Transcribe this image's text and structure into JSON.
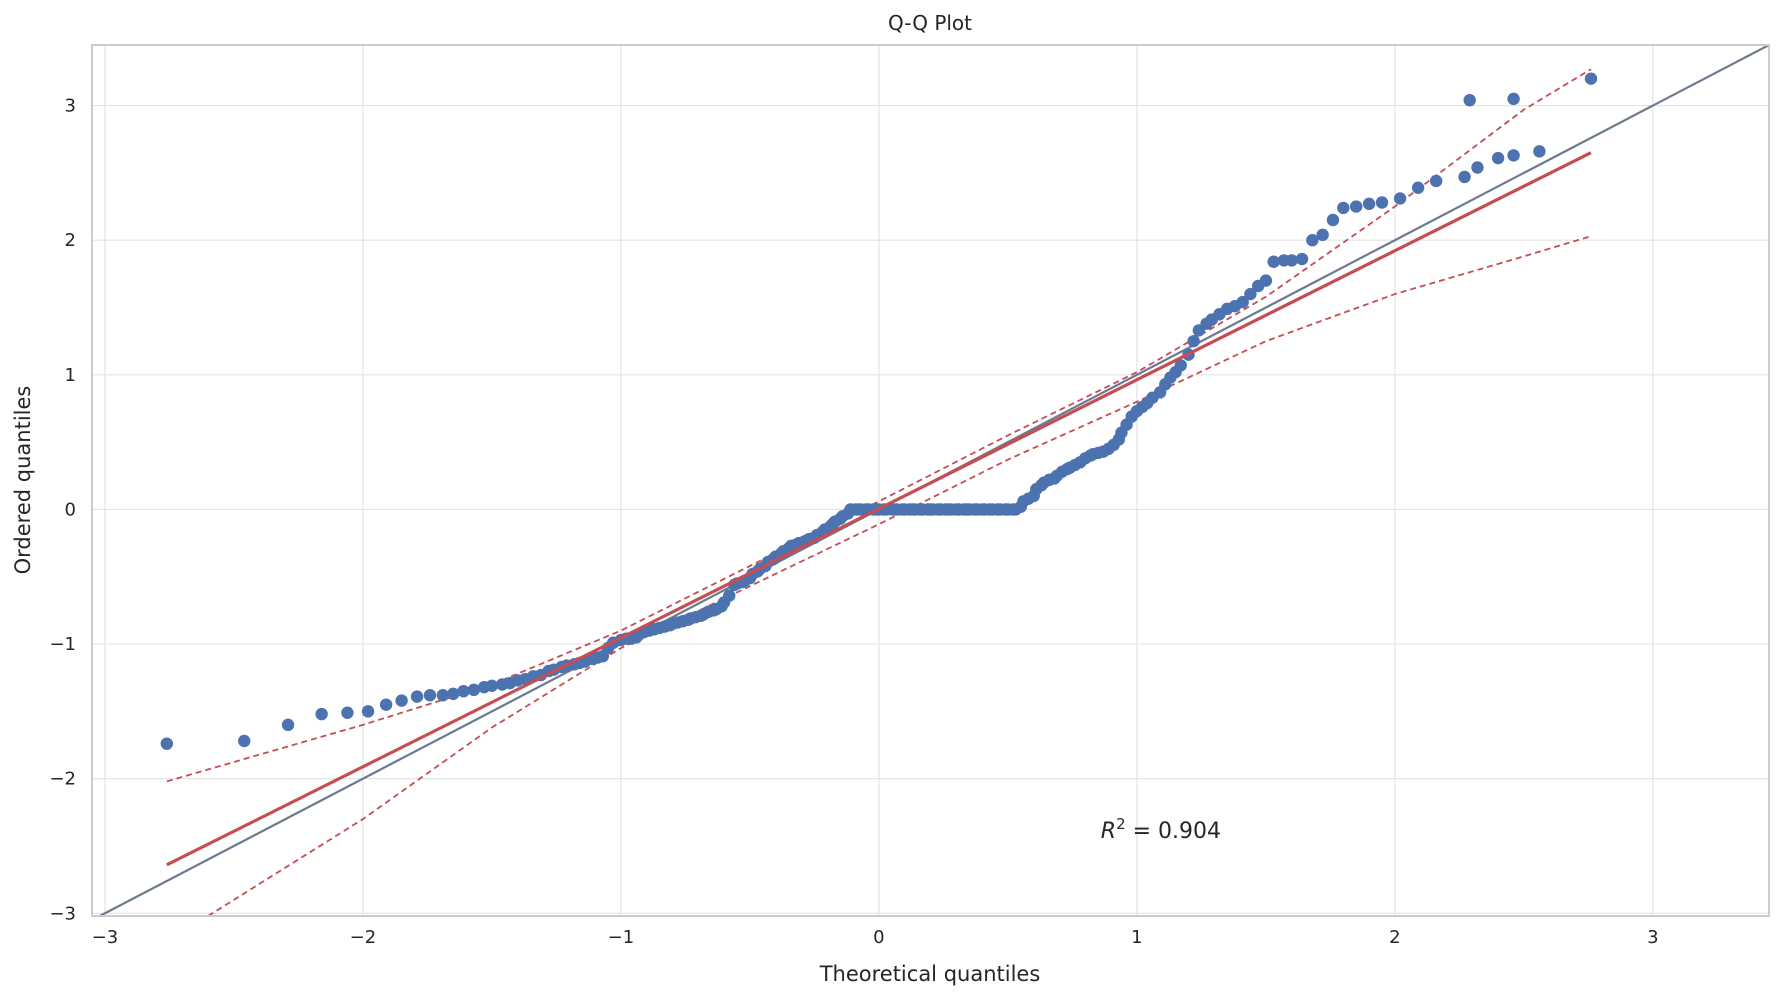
{
  "chart_data": {
    "type": "scatter",
    "title": "Q-Q Plot",
    "xlabel": "Theoretical quantiles",
    "ylabel": "Ordered quantiles",
    "xlim": [
      -3.05,
      3.45
    ],
    "ylim": [
      -3.02,
      3.45
    ],
    "xticks": [
      -3,
      -2,
      -1,
      0,
      1,
      2,
      3
    ],
    "yticks": [
      -3,
      -2,
      -1,
      0,
      1,
      2,
      3
    ],
    "xtick_labels": [
      "−3",
      "−2",
      "−1",
      "0",
      "1",
      "2",
      "3"
    ],
    "ytick_labels": [
      "−3",
      "−2",
      "−1",
      "0",
      "1",
      "2",
      "3"
    ],
    "grid": true,
    "annotation": {
      "x": 0.86,
      "y": -2.38,
      "prefix": "R",
      "superscript": "2",
      "suffix": " = 0.904"
    },
    "colors": {
      "points": "#4c72b0",
      "fit": "#c44e52",
      "band": "#c44e52",
      "diagonal": "#6b7a8f",
      "grid": "#e3e3e3",
      "axes": "#cccccc"
    },
    "reference_line": {
      "slope": 1,
      "intercept": 0
    },
    "fit_line": {
      "x": [
        -2.76,
        2.76
      ],
      "y": [
        -2.64,
        2.65
      ]
    },
    "confidence_band_upper": {
      "x": [
        -2.76,
        -2.0,
        -1.5,
        -1.0,
        -0.5,
        0.0,
        0.5,
        1.0,
        1.5,
        2.0,
        2.5,
        2.76
      ],
      "y": [
        -2.02,
        -1.6,
        -1.3,
        -0.9,
        -0.42,
        0.06,
        0.55,
        1.02,
        1.58,
        2.25,
        2.97,
        3.27
      ]
    },
    "confidence_band_lower": {
      "x": [
        -2.6,
        -2.0,
        -1.5,
        -1.0,
        -0.5,
        0.0,
        0.5,
        1.0,
        1.5,
        2.0,
        2.5,
        2.76
      ],
      "y": [
        -3.02,
        -2.3,
        -1.62,
        -1.03,
        -0.57,
        -0.11,
        0.37,
        0.8,
        1.25,
        1.6,
        1.88,
        2.03
      ]
    },
    "series": [
      {
        "values": [
          [
            -2.76,
            -1.74
          ],
          [
            -2.46,
            -1.72
          ],
          [
            -2.29,
            -1.6
          ],
          [
            -2.16,
            -1.52
          ],
          [
            -2.06,
            -1.51
          ],
          [
            -1.98,
            -1.5
          ],
          [
            -1.91,
            -1.45
          ],
          [
            -1.85,
            -1.42
          ],
          [
            -1.79,
            -1.39
          ],
          [
            -1.74,
            -1.38
          ],
          [
            -1.69,
            -1.38
          ],
          [
            -1.65,
            -1.37
          ],
          [
            -1.61,
            -1.35
          ],
          [
            -1.57,
            -1.34
          ],
          [
            -1.53,
            -1.32
          ],
          [
            -1.5,
            -1.31
          ],
          [
            -1.46,
            -1.3
          ],
          [
            -1.43,
            -1.29
          ],
          [
            -1.4,
            -1.27
          ],
          [
            -1.37,
            -1.26
          ],
          [
            -1.34,
            -1.24
          ],
          [
            -1.31,
            -1.23
          ],
          [
            -1.28,
            -1.2
          ],
          [
            -1.26,
            -1.19
          ],
          [
            -1.23,
            -1.17
          ],
          [
            -1.21,
            -1.16
          ],
          [
            -1.18,
            -1.15
          ],
          [
            -1.16,
            -1.14
          ],
          [
            -1.14,
            -1.13
          ],
          [
            -1.11,
            -1.11
          ],
          [
            -1.09,
            -1.1
          ],
          [
            -1.07,
            -1.09
          ],
          [
            -1.05,
            -1.03
          ],
          [
            -1.03,
            -0.99
          ],
          [
            -1.0,
            -0.97
          ],
          [
            -0.98,
            -0.96
          ],
          [
            -0.96,
            -0.96
          ],
          [
            -0.94,
            -0.95
          ],
          [
            -0.93,
            -0.93
          ],
          [
            -0.91,
            -0.91
          ],
          [
            -0.89,
            -0.9
          ],
          [
            -0.87,
            -0.89
          ],
          [
            -0.85,
            -0.88
          ],
          [
            -0.83,
            -0.87
          ],
          [
            -0.81,
            -0.86
          ],
          [
            -0.8,
            -0.85
          ],
          [
            -0.78,
            -0.84
          ],
          [
            -0.76,
            -0.83
          ],
          [
            -0.74,
            -0.82
          ],
          [
            -0.73,
            -0.81
          ],
          [
            -0.71,
            -0.8
          ],
          [
            -0.69,
            -0.79
          ],
          [
            -0.68,
            -0.78
          ],
          [
            -0.66,
            -0.76
          ],
          [
            -0.64,
            -0.75
          ],
          [
            -0.63,
            -0.74
          ],
          [
            -0.61,
            -0.72
          ],
          [
            -0.6,
            -0.69
          ],
          [
            -0.58,
            -0.64
          ],
          [
            -0.56,
            -0.56
          ],
          [
            -0.55,
            -0.55
          ],
          [
            -0.53,
            -0.54
          ],
          [
            -0.52,
            -0.53
          ],
          [
            -0.5,
            -0.51
          ],
          [
            -0.49,
            -0.48
          ],
          [
            -0.47,
            -0.46
          ],
          [
            -0.46,
            -0.44
          ],
          [
            -0.44,
            -0.42
          ],
          [
            -0.43,
            -0.39
          ],
          [
            -0.41,
            -0.37
          ],
          [
            -0.4,
            -0.35
          ],
          [
            -0.38,
            -0.33
          ],
          [
            -0.37,
            -0.31
          ],
          [
            -0.35,
            -0.29
          ],
          [
            -0.34,
            -0.27
          ],
          [
            -0.32,
            -0.26
          ],
          [
            -0.31,
            -0.25
          ],
          [
            -0.29,
            -0.24
          ],
          [
            -0.28,
            -0.23
          ],
          [
            -0.27,
            -0.22
          ],
          [
            -0.25,
            -0.21
          ],
          [
            -0.24,
            -0.19
          ],
          [
            -0.22,
            -0.17
          ],
          [
            -0.21,
            -0.15
          ],
          [
            -0.19,
            -0.13
          ],
          [
            -0.18,
            -0.11
          ],
          [
            -0.17,
            -0.09
          ],
          [
            -0.15,
            -0.07
          ],
          [
            -0.14,
            -0.05
          ],
          [
            -0.12,
            -0.03
          ],
          [
            -0.11,
            0.0
          ],
          [
            -0.09,
            0.0
          ],
          [
            -0.08,
            0.0
          ],
          [
            -0.07,
            0.0
          ],
          [
            -0.05,
            0.0
          ],
          [
            -0.04,
            0.0
          ],
          [
            -0.02,
            0.0
          ],
          [
            -0.01,
            0.0
          ],
          [
            0.0,
            0.0
          ],
          [
            0.02,
            0.0
          ],
          [
            0.03,
            0.0
          ],
          [
            0.05,
            0.0
          ],
          [
            0.06,
            0.0
          ],
          [
            0.07,
            0.0
          ],
          [
            0.09,
            0.0
          ],
          [
            0.1,
            0.0
          ],
          [
            0.12,
            0.0
          ],
          [
            0.13,
            0.0
          ],
          [
            0.14,
            0.0
          ],
          [
            0.16,
            0.0
          ],
          [
            0.17,
            0.0
          ],
          [
            0.19,
            0.0
          ],
          [
            0.2,
            0.0
          ],
          [
            0.21,
            0.0
          ],
          [
            0.23,
            0.0
          ],
          [
            0.24,
            0.0
          ],
          [
            0.26,
            0.0
          ],
          [
            0.27,
            0.0
          ],
          [
            0.28,
            0.0
          ],
          [
            0.3,
            0.0
          ],
          [
            0.31,
            0.0
          ],
          [
            0.33,
            0.0
          ],
          [
            0.34,
            0.0
          ],
          [
            0.35,
            0.0
          ],
          [
            0.37,
            0.0
          ],
          [
            0.38,
            0.0
          ],
          [
            0.4,
            0.0
          ],
          [
            0.41,
            0.0
          ],
          [
            0.43,
            0.0
          ],
          [
            0.44,
            0.0
          ],
          [
            0.46,
            0.0
          ],
          [
            0.47,
            0.0
          ],
          [
            0.49,
            0.0
          ],
          [
            0.5,
            0.0
          ],
          [
            0.52,
            0.0
          ],
          [
            0.53,
            0.0
          ],
          [
            0.55,
            0.02
          ],
          [
            0.56,
            0.06
          ],
          [
            0.58,
            0.08
          ],
          [
            0.6,
            0.1
          ],
          [
            0.61,
            0.15
          ],
          [
            0.63,
            0.18
          ],
          [
            0.64,
            0.2
          ],
          [
            0.66,
            0.22
          ],
          [
            0.68,
            0.23
          ],
          [
            0.69,
            0.25
          ],
          [
            0.71,
            0.28
          ],
          [
            0.73,
            0.3
          ],
          [
            0.74,
            0.31
          ],
          [
            0.76,
            0.33
          ],
          [
            0.78,
            0.35
          ],
          [
            0.8,
            0.38
          ],
          [
            0.82,
            0.4
          ],
          [
            0.83,
            0.41
          ],
          [
            0.85,
            0.42
          ],
          [
            0.87,
            0.43
          ],
          [
            0.89,
            0.45
          ],
          [
            0.91,
            0.48
          ],
          [
            0.93,
            0.52
          ],
          [
            0.94,
            0.57
          ],
          [
            0.96,
            0.63
          ],
          [
            0.98,
            0.69
          ],
          [
            1.0,
            0.73
          ],
          [
            1.02,
            0.76
          ],
          [
            1.04,
            0.79
          ],
          [
            1.06,
            0.83
          ],
          [
            1.09,
            0.87
          ],
          [
            1.11,
            0.93
          ],
          [
            1.13,
            0.98
          ],
          [
            1.15,
            1.02
          ],
          [
            1.17,
            1.07
          ],
          [
            1.2,
            1.15
          ],
          [
            1.22,
            1.25
          ],
          [
            1.24,
            1.33
          ],
          [
            1.27,
            1.38
          ],
          [
            1.29,
            1.41
          ],
          [
            1.32,
            1.45
          ],
          [
            1.35,
            1.49
          ],
          [
            1.38,
            1.51
          ],
          [
            1.41,
            1.54
          ],
          [
            1.44,
            1.6
          ],
          [
            1.47,
            1.66
          ],
          [
            1.5,
            1.7
          ],
          [
            1.53,
            1.84
          ],
          [
            1.57,
            1.85
          ],
          [
            1.6,
            1.85
          ],
          [
            1.64,
            1.86
          ],
          [
            1.68,
            2.0
          ],
          [
            1.72,
            2.04
          ],
          [
            1.76,
            2.15
          ],
          [
            1.8,
            2.24
          ],
          [
            1.85,
            2.25
          ],
          [
            1.9,
            2.27
          ],
          [
            1.95,
            2.28
          ],
          [
            2.02,
            2.31
          ],
          [
            2.09,
            2.39
          ],
          [
            2.16,
            2.44
          ],
          [
            2.27,
            2.47
          ],
          [
            2.32,
            2.54
          ],
          [
            2.4,
            2.61
          ],
          [
            2.46,
            2.63
          ],
          [
            2.56,
            2.66
          ],
          [
            2.29,
            3.04
          ],
          [
            2.46,
            3.05
          ],
          [
            2.76,
            3.2
          ]
        ]
      }
    ]
  }
}
